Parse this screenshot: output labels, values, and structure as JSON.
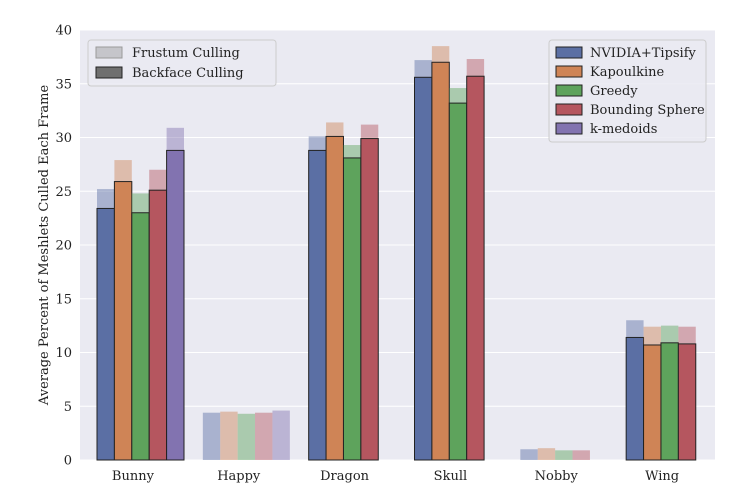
{
  "chart_data": {
    "type": "bar",
    "title": "",
    "xlabel": "",
    "ylabel": "Average Percent of Meshlets Culled Each Frame",
    "ylim": [
      0,
      40
    ],
    "yticks": [
      0,
      5,
      10,
      15,
      20,
      25,
      30,
      35,
      40
    ],
    "grid": true,
    "categories": [
      "Bunny",
      "Happy",
      "Dragon",
      "Skull",
      "Nobby",
      "Wing"
    ],
    "series": [
      {
        "name": "NVIDIA+Tipsify",
        "color": "#5b6fa4",
        "frustum": [
          25.2,
          4.4,
          30.1,
          37.2,
          1.0,
          13.0
        ],
        "backface": [
          23.4,
          0.0,
          28.8,
          35.6,
          0.0,
          11.4
        ]
      },
      {
        "name": "Kapoulkine",
        "color": "#cf8456",
        "frustum": [
          27.9,
          4.5,
          31.4,
          38.5,
          1.1,
          12.4
        ],
        "backface": [
          25.9,
          0.0,
          30.1,
          37.0,
          0.0,
          10.7
        ]
      },
      {
        "name": "Greedy",
        "color": "#5ea35c",
        "frustum": [
          24.8,
          4.3,
          29.3,
          34.6,
          0.9,
          12.5
        ],
        "backface": [
          23.0,
          0.0,
          28.1,
          33.2,
          0.0,
          10.9
        ]
      },
      {
        "name": "Bounding Sphere",
        "color": "#b5565f",
        "frustum": [
          27.0,
          4.4,
          31.2,
          37.3,
          0.9,
          12.4
        ],
        "backface": [
          25.1,
          0.0,
          29.9,
          35.7,
          0.0,
          10.8
        ]
      },
      {
        "name": "k-medoids",
        "color": "#8273b0",
        "frustum": [
          30.9,
          4.6,
          null,
          null,
          null,
          null
        ],
        "backface": [
          28.8,
          0.0,
          null,
          null,
          null,
          null
        ]
      }
    ],
    "legend_styles": [
      {
        "label": "Frustum Culling"
      },
      {
        "label": "Backface Culling"
      }
    ],
    "legend_style_placement": "top-left",
    "legend_series_placement": "top-right"
  }
}
